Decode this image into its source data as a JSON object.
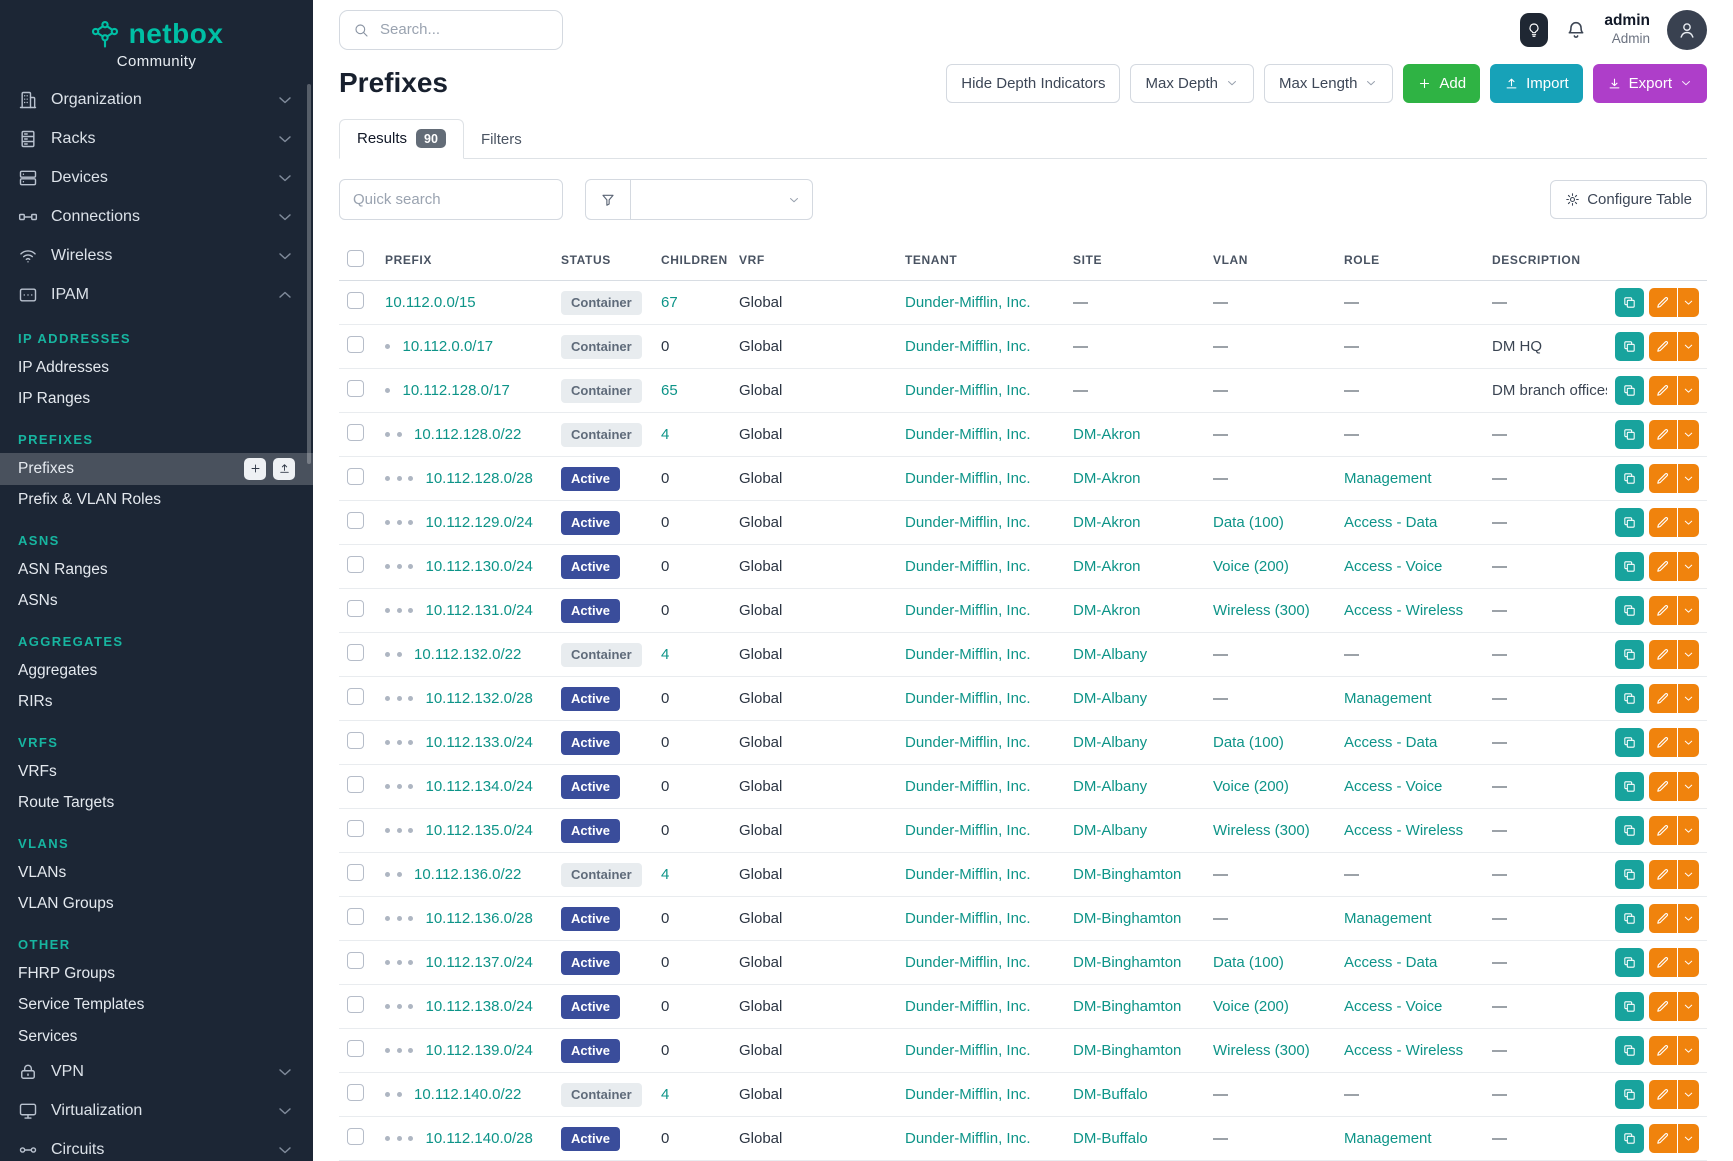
{
  "brand": {
    "name": "netbox",
    "community": "Community"
  },
  "topbar": {
    "search_placeholder": "Search...",
    "username": "admin",
    "role": "Admin"
  },
  "sidebar": {
    "top_items": [
      {
        "label": "Organization",
        "icon": "building"
      },
      {
        "label": "Racks",
        "icon": "rack"
      },
      {
        "label": "Devices",
        "icon": "devices"
      },
      {
        "label": "Connections",
        "icon": "connections"
      },
      {
        "label": "Wireless",
        "icon": "wireless"
      },
      {
        "label": "IPAM",
        "icon": "ipam",
        "expanded": true
      }
    ],
    "ipam_sections": [
      {
        "title": "IP ADDRESSES",
        "items": [
          {
            "label": "IP Addresses"
          },
          {
            "label": "IP Ranges"
          }
        ]
      },
      {
        "title": "PREFIXES",
        "items": [
          {
            "label": "Prefixes",
            "active": true
          },
          {
            "label": "Prefix & VLAN Roles"
          }
        ]
      },
      {
        "title": "ASNS",
        "items": [
          {
            "label": "ASN Ranges"
          },
          {
            "label": "ASNs"
          }
        ]
      },
      {
        "title": "AGGREGATES",
        "items": [
          {
            "label": "Aggregates"
          },
          {
            "label": "RIRs"
          }
        ]
      },
      {
        "title": "VRFS",
        "items": [
          {
            "label": "VRFs"
          },
          {
            "label": "Route Targets"
          }
        ]
      },
      {
        "title": "VLANS",
        "items": [
          {
            "label": "VLANs"
          },
          {
            "label": "VLAN Groups"
          }
        ]
      },
      {
        "title": "OTHER",
        "items": [
          {
            "label": "FHRP Groups"
          },
          {
            "label": "Service Templates"
          },
          {
            "label": "Services"
          }
        ]
      }
    ],
    "bottom_items": [
      {
        "label": "VPN",
        "icon": "vpn"
      },
      {
        "label": "Virtualization",
        "icon": "virtualization"
      },
      {
        "label": "Circuits",
        "icon": "circuits"
      }
    ]
  },
  "page": {
    "title": "Prefixes",
    "toolbar": {
      "hide_depth": "Hide Depth Indicators",
      "max_depth": "Max Depth",
      "max_length": "Max Length",
      "add": "Add",
      "import": "Import",
      "export": "Export"
    },
    "tabs": [
      {
        "label": "Results",
        "badge": "90",
        "active": true
      },
      {
        "label": "Filters"
      }
    ],
    "quick_search_placeholder": "Quick search",
    "configure_table": "Configure Table"
  },
  "table": {
    "columns": [
      "PREFIX",
      "STATUS",
      "CHILDREN",
      "VRF",
      "TENANT",
      "SITE",
      "VLAN",
      "ROLE",
      "DESCRIPTION"
    ],
    "rows": [
      {
        "depth": 0,
        "prefix": "10.112.0.0/15",
        "status": "Container",
        "children": "67",
        "vrf": "Global",
        "tenant": "Dunder-Mifflin, Inc.",
        "site": "—",
        "vlan": "—",
        "role": "—",
        "description": "—"
      },
      {
        "depth": 1,
        "prefix": "10.112.0.0/17",
        "status": "Container",
        "children": "0",
        "vrf": "Global",
        "tenant": "Dunder-Mifflin, Inc.",
        "site": "—",
        "vlan": "—",
        "role": "—",
        "description": "DM HQ"
      },
      {
        "depth": 1,
        "prefix": "10.112.128.0/17",
        "status": "Container",
        "children": "65",
        "vrf": "Global",
        "tenant": "Dunder-Mifflin, Inc.",
        "site": "—",
        "vlan": "—",
        "role": "—",
        "description": "DM branch offices"
      },
      {
        "depth": 2,
        "prefix": "10.112.128.0/22",
        "status": "Container",
        "children": "4",
        "vrf": "Global",
        "tenant": "Dunder-Mifflin, Inc.",
        "site": "DM-Akron",
        "vlan": "—",
        "role": "—",
        "description": "—"
      },
      {
        "depth": 3,
        "prefix": "10.112.128.0/28",
        "status": "Active",
        "children": "0",
        "vrf": "Global",
        "tenant": "Dunder-Mifflin, Inc.",
        "site": "DM-Akron",
        "vlan": "—",
        "role": "Management",
        "description": "—"
      },
      {
        "depth": 3,
        "prefix": "10.112.129.0/24",
        "status": "Active",
        "children": "0",
        "vrf": "Global",
        "tenant": "Dunder-Mifflin, Inc.",
        "site": "DM-Akron",
        "vlan": "Data (100)",
        "role": "Access - Data",
        "description": "—"
      },
      {
        "depth": 3,
        "prefix": "10.112.130.0/24",
        "status": "Active",
        "children": "0",
        "vrf": "Global",
        "tenant": "Dunder-Mifflin, Inc.",
        "site": "DM-Akron",
        "vlan": "Voice (200)",
        "role": "Access - Voice",
        "description": "—"
      },
      {
        "depth": 3,
        "prefix": "10.112.131.0/24",
        "status": "Active",
        "children": "0",
        "vrf": "Global",
        "tenant": "Dunder-Mifflin, Inc.",
        "site": "DM-Akron",
        "vlan": "Wireless (300)",
        "role": "Access - Wireless",
        "description": "—"
      },
      {
        "depth": 2,
        "prefix": "10.112.132.0/22",
        "status": "Container",
        "children": "4",
        "vrf": "Global",
        "tenant": "Dunder-Mifflin, Inc.",
        "site": "DM-Albany",
        "vlan": "—",
        "role": "—",
        "description": "—"
      },
      {
        "depth": 3,
        "prefix": "10.112.132.0/28",
        "status": "Active",
        "children": "0",
        "vrf": "Global",
        "tenant": "Dunder-Mifflin, Inc.",
        "site": "DM-Albany",
        "vlan": "—",
        "role": "Management",
        "description": "—"
      },
      {
        "depth": 3,
        "prefix": "10.112.133.0/24",
        "status": "Active",
        "children": "0",
        "vrf": "Global",
        "tenant": "Dunder-Mifflin, Inc.",
        "site": "DM-Albany",
        "vlan": "Data (100)",
        "role": "Access - Data",
        "description": "—"
      },
      {
        "depth": 3,
        "prefix": "10.112.134.0/24",
        "status": "Active",
        "children": "0",
        "vrf": "Global",
        "tenant": "Dunder-Mifflin, Inc.",
        "site": "DM-Albany",
        "vlan": "Voice (200)",
        "role": "Access - Voice",
        "description": "—"
      },
      {
        "depth": 3,
        "prefix": "10.112.135.0/24",
        "status": "Active",
        "children": "0",
        "vrf": "Global",
        "tenant": "Dunder-Mifflin, Inc.",
        "site": "DM-Albany",
        "vlan": "Wireless (300)",
        "role": "Access - Wireless",
        "description": "—"
      },
      {
        "depth": 2,
        "prefix": "10.112.136.0/22",
        "status": "Container",
        "children": "4",
        "vrf": "Global",
        "tenant": "Dunder-Mifflin, Inc.",
        "site": "DM-Binghamton",
        "vlan": "—",
        "role": "—",
        "description": "—"
      },
      {
        "depth": 3,
        "prefix": "10.112.136.0/28",
        "status": "Active",
        "children": "0",
        "vrf": "Global",
        "tenant": "Dunder-Mifflin, Inc.",
        "site": "DM-Binghamton",
        "vlan": "—",
        "role": "Management",
        "description": "—"
      },
      {
        "depth": 3,
        "prefix": "10.112.137.0/24",
        "status": "Active",
        "children": "0",
        "vrf": "Global",
        "tenant": "Dunder-Mifflin, Inc.",
        "site": "DM-Binghamton",
        "vlan": "Data (100)",
        "role": "Access - Data",
        "description": "—"
      },
      {
        "depth": 3,
        "prefix": "10.112.138.0/24",
        "status": "Active",
        "children": "0",
        "vrf": "Global",
        "tenant": "Dunder-Mifflin, Inc.",
        "site": "DM-Binghamton",
        "vlan": "Voice (200)",
        "role": "Access - Voice",
        "description": "—"
      },
      {
        "depth": 3,
        "prefix": "10.112.139.0/24",
        "status": "Active",
        "children": "0",
        "vrf": "Global",
        "tenant": "Dunder-Mifflin, Inc.",
        "site": "DM-Binghamton",
        "vlan": "Wireless (300)",
        "role": "Access - Wireless",
        "description": "—"
      },
      {
        "depth": 2,
        "prefix": "10.112.140.0/22",
        "status": "Container",
        "children": "4",
        "vrf": "Global",
        "tenant": "Dunder-Mifflin, Inc.",
        "site": "DM-Buffalo",
        "vlan": "—",
        "role": "—",
        "description": "—"
      },
      {
        "depth": 3,
        "prefix": "10.112.140.0/28",
        "status": "Active",
        "children": "0",
        "vrf": "Global",
        "tenant": "Dunder-Mifflin, Inc.",
        "site": "DM-Buffalo",
        "vlan": "—",
        "role": "Management",
        "description": "—"
      }
    ]
  },
  "colors": {
    "brand_teal": "#00bfa5",
    "sidebar_bg": "#1c2635",
    "section_title_teal": "#17b5a0",
    "link_teal": "#0d9488",
    "badge_active_bg": "#3a4d9b",
    "badge_container_bg": "#e8ecef",
    "button_add_green": "#2fb344",
    "button_import_cyan": "#17a2b8",
    "button_export_purple": "#ae3ec9",
    "row_clone_teal": "#18a39d",
    "row_edit_orange": "#f0830d"
  }
}
